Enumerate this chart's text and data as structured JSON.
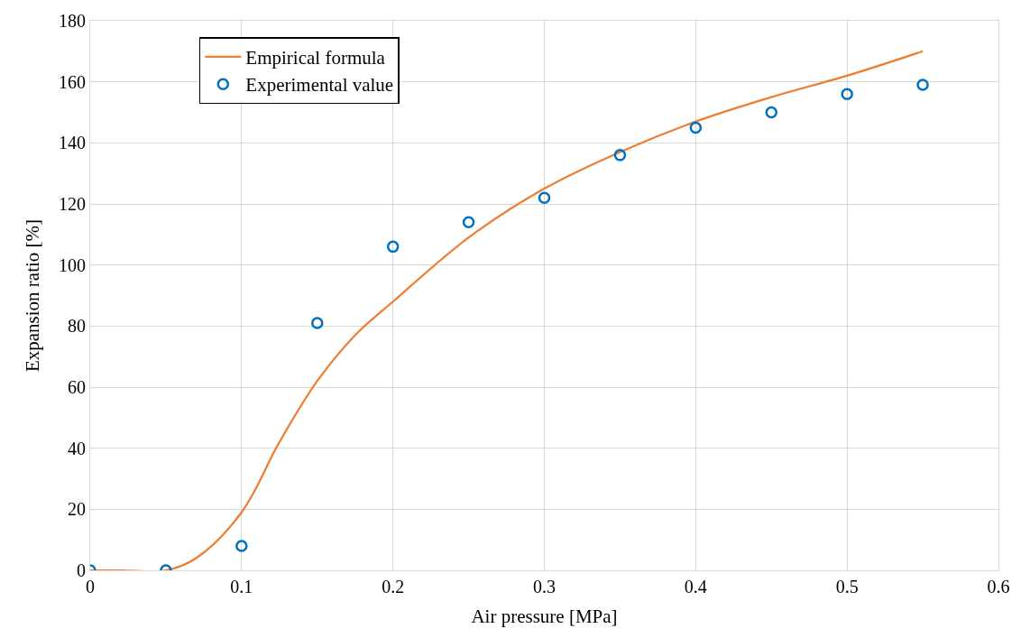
{
  "chart_data": {
    "type": "scatter",
    "xlabel": "Air pressure [MPa]",
    "ylabel": "Expansion ratio [%]",
    "xlim": [
      0,
      0.6
    ],
    "xticks": [
      0,
      0.1,
      0.2,
      0.3,
      0.4,
      0.5,
      0.6
    ],
    "ylim": [
      0,
      180
    ],
    "yticks": [
      0,
      20,
      40,
      60,
      80,
      100,
      120,
      140,
      160,
      180
    ],
    "grid": true,
    "legend": "top left",
    "series": [
      {
        "name": "Empirical formula",
        "type": "line",
        "marker": "none",
        "line_style": "solid",
        "color": "#ed7d31",
        "x": [
          0,
          0.02,
          0.05,
          0.07,
          0.1,
          0.125,
          0.15,
          0.175,
          0.2,
          0.25,
          0.3,
          0.35,
          0.4,
          0.45,
          0.5,
          0.55
        ],
        "values": [
          0,
          0,
          0,
          4,
          19,
          42,
          62,
          77,
          88,
          109,
          125,
          137,
          147,
          155,
          162,
          170
        ]
      },
      {
        "name": "Experimental value",
        "marker": "circle",
        "color": "#0070c0",
        "x": [
          0,
          0.05,
          0.1,
          0.15,
          0.2,
          0.25,
          0.3,
          0.35,
          0.4,
          0.45,
          0.5,
          0.55
        ],
        "values": [
          0,
          0,
          8,
          81,
          106,
          114,
          122,
          136,
          145,
          150,
          156,
          159
        ]
      }
    ]
  }
}
